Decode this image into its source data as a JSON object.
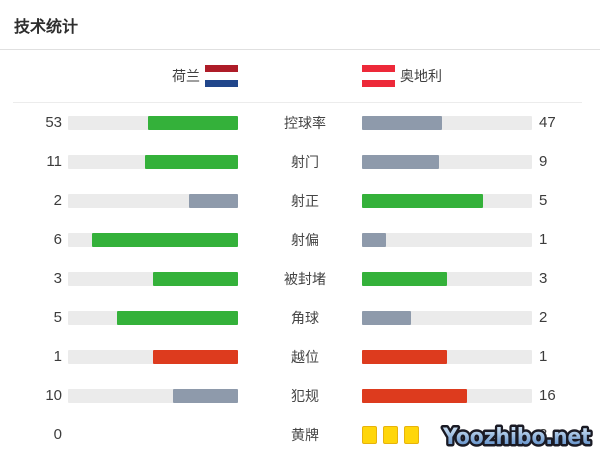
{
  "header": {
    "title": "技术统计"
  },
  "teams": {
    "home": {
      "name": "荷兰",
      "flag_stripes": [
        "#AE1C28",
        "#FFFFFF",
        "#21468B"
      ]
    },
    "away": {
      "name": "奥地利",
      "flag_stripes": [
        "#ED2939",
        "#FFFFFF",
        "#ED2939"
      ]
    }
  },
  "colors": {
    "green": "#34B13A",
    "gray": "#8E9AAB",
    "red": "#DD3B1E",
    "track": "#EBEBEB",
    "card_yellow": "#FFD60A",
    "card_border": "#E7B30C"
  },
  "stats": {
    "rows": [
      {
        "label": "控球率",
        "home": "53",
        "away": "47",
        "home_color": "green",
        "away_color": "gray",
        "home_pct": 53,
        "away_pct": 47
      },
      {
        "label": "射门",
        "home": "11",
        "away": "9",
        "home_color": "green",
        "away_color": "gray",
        "home_pct": 55,
        "away_pct": 45
      },
      {
        "label": "射正",
        "home": "2",
        "away": "5",
        "home_color": "gray",
        "away_color": "green",
        "home_pct": 28.6,
        "away_pct": 71.4
      },
      {
        "label": "射偏",
        "home": "6",
        "away": "1",
        "home_color": "green",
        "away_color": "gray",
        "home_pct": 85.7,
        "away_pct": 14.3
      },
      {
        "label": "被封堵",
        "home": "3",
        "away": "3",
        "home_color": "green",
        "away_color": "green",
        "home_pct": 50,
        "away_pct": 50
      },
      {
        "label": "角球",
        "home": "5",
        "away": "2",
        "home_color": "green",
        "away_color": "gray",
        "home_pct": 71.4,
        "away_pct": 28.6
      },
      {
        "label": "越位",
        "home": "1",
        "away": "1",
        "home_color": "red",
        "away_color": "red",
        "home_pct": 50,
        "away_pct": 50
      },
      {
        "label": "犯规",
        "home": "10",
        "away": "16",
        "home_color": "gray",
        "away_color": "red",
        "home_pct": 38.5,
        "away_pct": 61.5
      },
      {
        "label": "黄牌",
        "home": "0",
        "away": "3",
        "home_bar": false,
        "away_cards": 3
      }
    ]
  },
  "chart_data": {
    "type": "bar",
    "title": "技术统计",
    "orientation": "horizontal-paired",
    "categories": [
      "控球率",
      "射门",
      "射正",
      "射偏",
      "被封堵",
      "角球",
      "越位",
      "犯规",
      "黄牌"
    ],
    "series": [
      {
        "name": "荷兰",
        "values": [
          53,
          11,
          2,
          6,
          3,
          5,
          1,
          10,
          0
        ]
      },
      {
        "name": "奥地利",
        "values": [
          47,
          9,
          5,
          1,
          3,
          2,
          1,
          16,
          3
        ]
      }
    ],
    "bar_fill_rule": "fill length = value / (home+away) of each category",
    "color_rule": "green = leading side (ties on positive stats both green), slate-gray = trailing side, red = negative stats (越位/犯规), yellow card icons for 黄牌"
  },
  "watermark": {
    "text": "Yoozhibo.net",
    "fill_top": "#D9EAF8",
    "fill_bottom": "#4A7FC1",
    "outline": "#1A1A24"
  }
}
